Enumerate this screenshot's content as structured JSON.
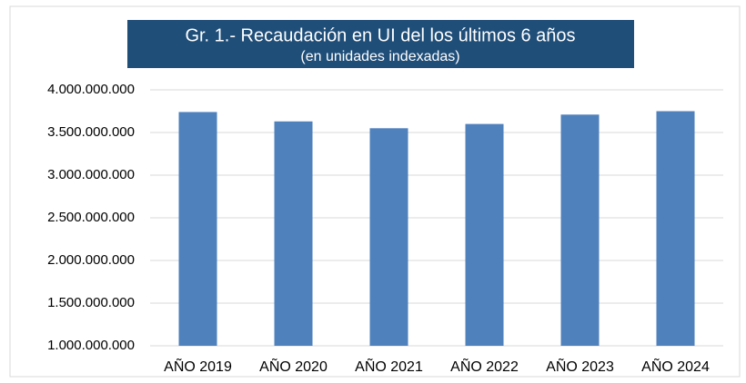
{
  "chart_data": {
    "type": "bar",
    "title": "Gr. 1.- Recaudación en UI del los últimos 6 años",
    "subtitle": "(en unidades indexadas)",
    "categories": [
      "AÑO 2019",
      "AÑO 2020",
      "AÑO 2021",
      "AÑO 2022",
      "AÑO 2023",
      "AÑO 2024"
    ],
    "values": [
      3740000000,
      3630000000,
      3550000000,
      3600000000,
      3710000000,
      3750000000
    ],
    "color": "#4f81bd",
    "ylim": [
      1000000000,
      4000000000
    ],
    "yticks": [
      {
        "value": 1000000000,
        "label": "1.000.000.000"
      },
      {
        "value": 1500000000,
        "label": "1.500.000.000"
      },
      {
        "value": 2000000000,
        "label": "2.000.000.000"
      },
      {
        "value": 2500000000,
        "label": "2.500.000.000"
      },
      {
        "value": 3000000000,
        "label": "3.000.000.000"
      },
      {
        "value": 3500000000,
        "label": "3.500.000.000"
      },
      {
        "value": 4000000000,
        "label": "4.000.000.000"
      }
    ],
    "grid": true
  }
}
